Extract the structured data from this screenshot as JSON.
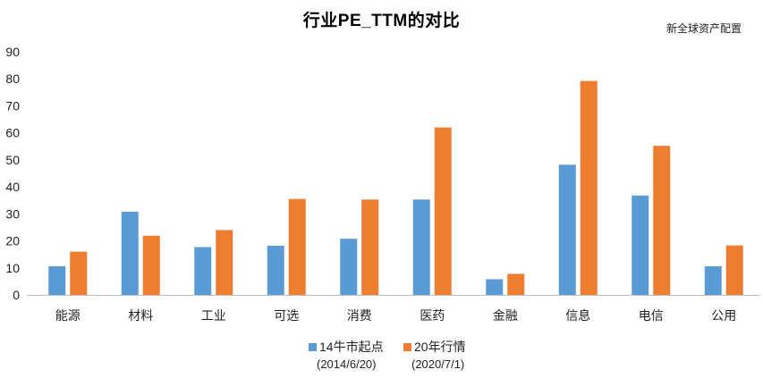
{
  "source_label": "新全球资产配置",
  "chart_data": {
    "type": "bar",
    "title": "行业PE_TTM的对比",
    "xlabel": "",
    "ylabel": "",
    "categories": [
      "能源",
      "材料",
      "工业",
      "可选",
      "消费",
      "医药",
      "金融",
      "信息",
      "电信",
      "公用"
    ],
    "series": [
      {
        "name": "14牛市起点",
        "date": "(2014/6/20)",
        "color": "#5B9BD5",
        "values": [
          10.6,
          30.8,
          17.7,
          18.2,
          20.8,
          35.3,
          5.8,
          48.2,
          36.8,
          10.6
        ]
      },
      {
        "name": "20年行情",
        "date": "(2020/7/1)",
        "color": "#ED7D31",
        "values": [
          16.0,
          21.9,
          24.0,
          35.5,
          35.3,
          62.0,
          7.8,
          79.2,
          55.2,
          18.3
        ]
      }
    ],
    "ylim": [
      0,
      90
    ],
    "yticks": [
      "0",
      "10",
      "20",
      "30",
      "40",
      "50",
      "60",
      "70",
      "80",
      "90"
    ],
    "grid": false,
    "legend": "bottom-center",
    "axis_color": "#BFBFBF"
  }
}
